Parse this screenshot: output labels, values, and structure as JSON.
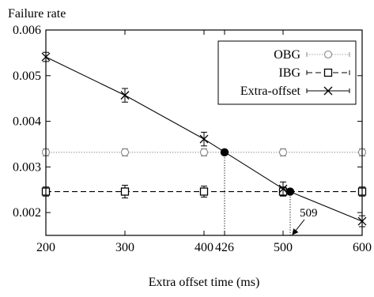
{
  "chart_data": {
    "type": "line",
    "ylabel": "Failure rate",
    "xlabel": "Extra offset time (ms)",
    "xlim": [
      200,
      600
    ],
    "ylim": [
      0.0015,
      0.006
    ],
    "x_ticks": [
      200,
      300,
      400,
      500,
      600
    ],
    "x_tick_labels": [
      "200",
      "300",
      "400",
      "500",
      "600"
    ],
    "extra_x_ticks": [
      426
    ],
    "extra_x_tick_labels": [
      "426"
    ],
    "y_ticks": [
      0.002,
      0.003,
      0.004,
      0.005,
      0.006
    ],
    "y_tick_labels": [
      "0.002",
      "0.003",
      "0.004",
      "0.005",
      "0.006"
    ],
    "grid": false,
    "legend_position": "top-right",
    "series": [
      {
        "name": "OBG",
        "style": "dotted",
        "marker": "circle",
        "color": "#888888",
        "points": [
          {
            "x": 200,
            "y": 0.00332,
            "err": 8e-05
          },
          {
            "x": 300,
            "y": 0.00332,
            "err": 8e-05
          },
          {
            "x": 400,
            "y": 0.00332,
            "err": 8e-05
          },
          {
            "x": 500,
            "y": 0.00332,
            "err": 8e-05
          },
          {
            "x": 600,
            "y": 0.00332,
            "err": 8e-05
          }
        ]
      },
      {
        "name": "IBG",
        "style": "dashed",
        "marker": "square",
        "color": "#000000",
        "points": [
          {
            "x": 200,
            "y": 0.00246,
            "err": 0.0001
          },
          {
            "x": 300,
            "y": 0.00246,
            "err": 0.00014
          },
          {
            "x": 400,
            "y": 0.00246,
            "err": 0.00012
          },
          {
            "x": 500,
            "y": 0.00246,
            "err": 0.0001
          },
          {
            "x": 600,
            "y": 0.00246,
            "err": 0.0001
          }
        ]
      },
      {
        "name": "Extra-offset",
        "style": "solid",
        "marker": "cross",
        "color": "#000000",
        "points": [
          {
            "x": 200,
            "y": 0.00541,
            "err": 0.0001
          },
          {
            "x": 300,
            "y": 0.00457,
            "err": 0.00015
          },
          {
            "x": 400,
            "y": 0.00361,
            "err": 0.00015
          },
          {
            "x": 500,
            "y": 0.00252,
            "err": 0.00015
          },
          {
            "x": 600,
            "y": 0.00181,
            "err": 0.00012
          }
        ]
      }
    ],
    "intersections": [
      {
        "x": 426,
        "y": 0.00332
      },
      {
        "x": 509,
        "y": 0.00246
      }
    ],
    "annotations": [
      {
        "text": "509",
        "x": 509,
        "y": 0.0015
      }
    ]
  }
}
